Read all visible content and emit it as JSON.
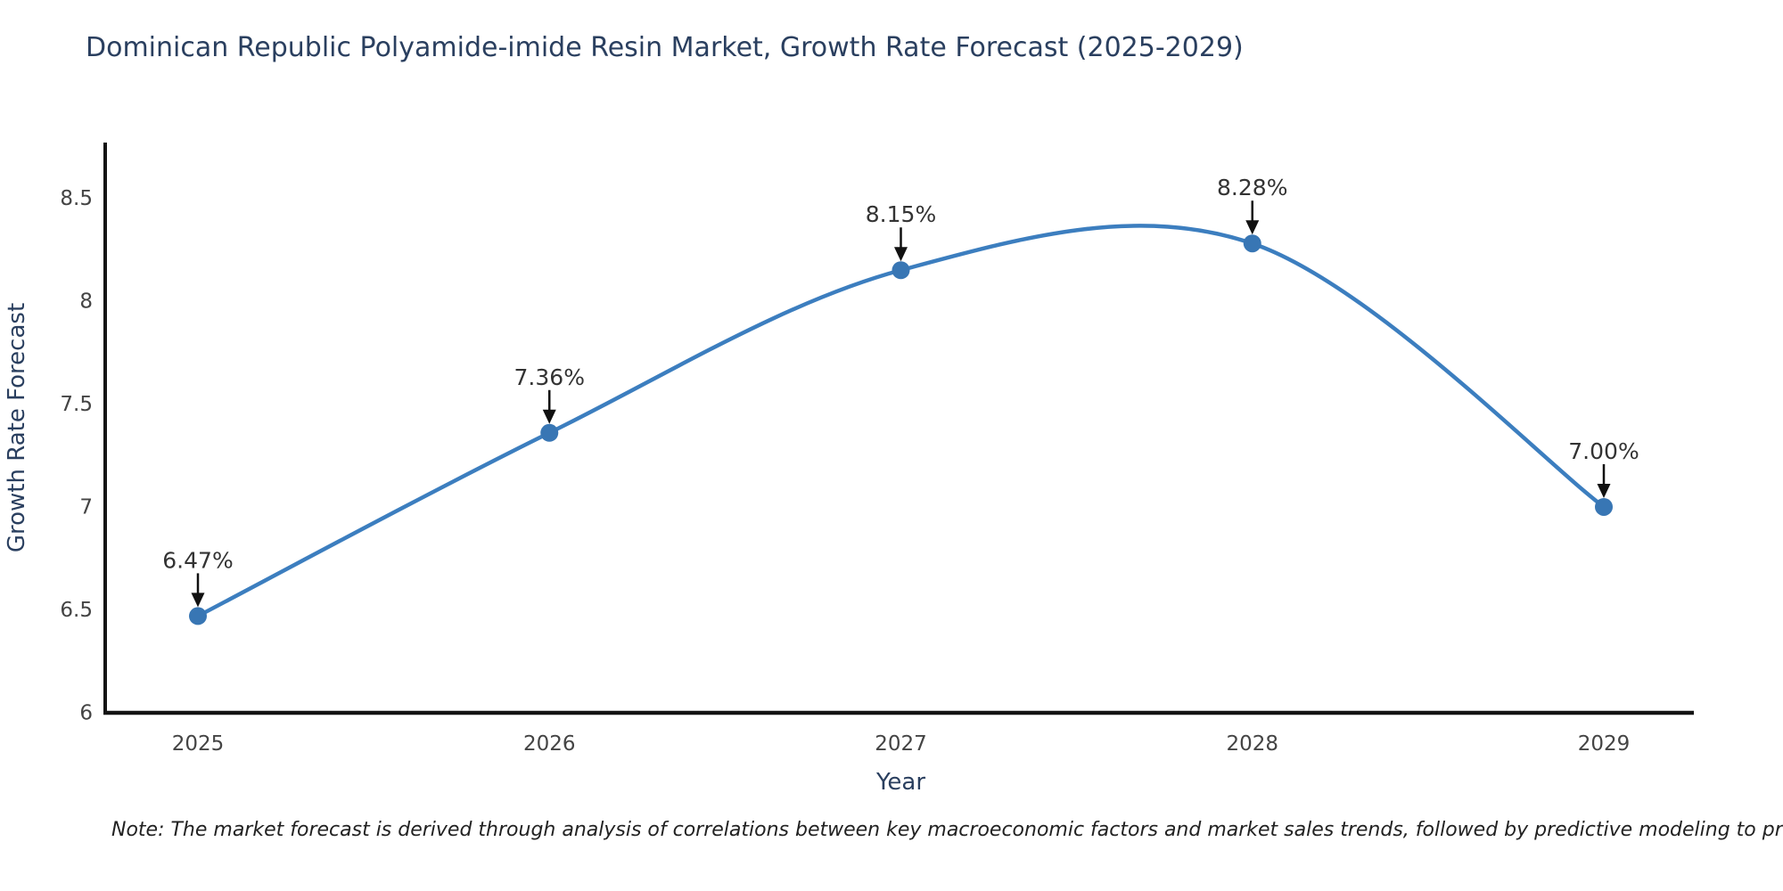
{
  "page": {
    "background": "#ffffff"
  },
  "chart_data": {
    "type": "line",
    "title": "Dominican Republic Polyamide-imide Resin Market, Growth Rate Forecast (2025-2029)",
    "xlabel": "Year",
    "ylabel": "Growth Rate Forecast",
    "categories": [
      "2025",
      "2026",
      "2027",
      "2028",
      "2029"
    ],
    "values": [
      6.47,
      7.36,
      8.15,
      8.28,
      7.0
    ],
    "point_labels": [
      "6.47%",
      "7.36%",
      "8.15%",
      "8.28%",
      "7.00%"
    ],
    "yticks": [
      6,
      6.5,
      7,
      7.5,
      8,
      8.5
    ],
    "ytick_labels": [
      "6",
      "6.5",
      "7",
      "7.5",
      "8",
      "8.5"
    ],
    "ylim": [
      6,
      8.77
    ],
    "grid": false,
    "legend": "none",
    "line_shape": "spline",
    "line_color": "#3c7ebf",
    "marker_color": "#3876b4",
    "axis_color": "#141414",
    "annotation_arrow_color": "#111111",
    "title_color": "#2a3f5f",
    "tick_color": "#444444",
    "annotation_color": "#333333",
    "note": "Note: The market forecast is derived through analysis of correlations between key macroeconomic factors and market sales trends, followed by predictive modeling to project future sales"
  }
}
